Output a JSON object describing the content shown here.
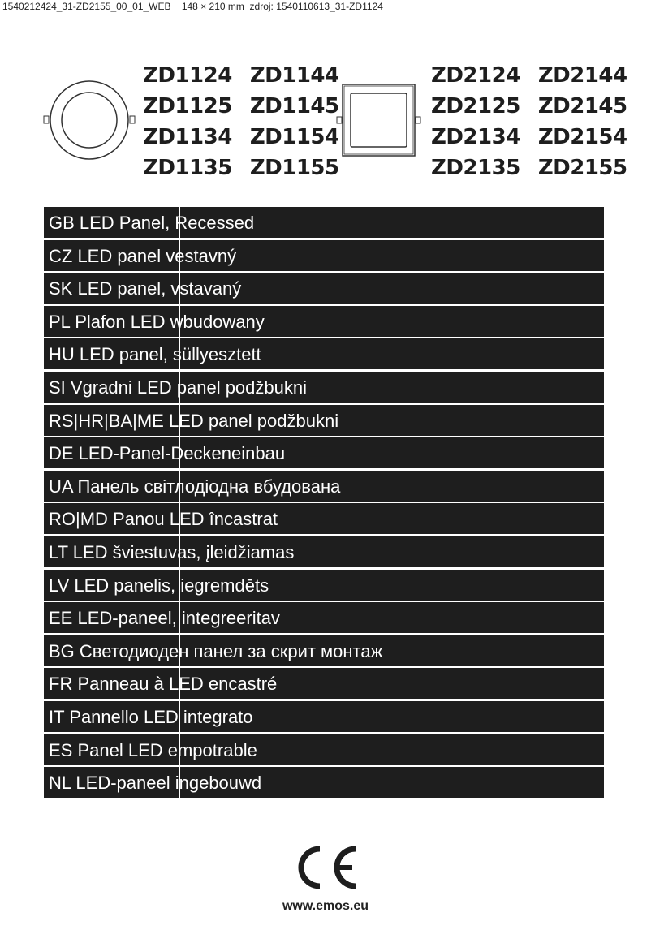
{
  "header_line": "1540212424_31-ZD2155_00_01_WEB    148 × 210 mm  zdroj: 1540110613_31-ZD1124",
  "round_models": [
    [
      "ZD1124",
      "ZD1144"
    ],
    [
      "ZD1125",
      "ZD1145"
    ],
    [
      "ZD1134",
      "ZD1154"
    ],
    [
      "ZD1135",
      "ZD1155"
    ]
  ],
  "square_models": [
    [
      "ZD2124",
      "ZD2144"
    ],
    [
      "ZD2125",
      "ZD2145"
    ],
    [
      "ZD2134",
      "ZD2154"
    ],
    [
      "ZD2135",
      "ZD2155"
    ]
  ],
  "languages": [
    "GB LED Panel, Recessed",
    "CZ LED panel vestavný",
    "SK LED panel, vstavaný",
    "PL Plafon LED wbudowany",
    "HU LED panel, süllyesztett",
    "SI Vgradni LED panel podžbukni",
    "RS|HR|BA|ME LED panel podžbukni",
    "DE LED-Panel-Deckeneinbau",
    "UA Панель світлодіодна вбудована",
    "RO|MD Panou LED încastrat",
    "LT LED šviestuvas, įleidžiamas",
    "LV LED panelis, iegremdēts",
    "EE LED-paneel, integreeritav",
    "BG Светодиоден панел за скрит монтаж",
    "FR Panneau à LED encastré",
    "IT Pannello LED integrato",
    "ES Panel LED empotrable",
    "NL LED-paneel ingebouwd"
  ],
  "ce_mark": "CE",
  "website": "www.emos.eu"
}
